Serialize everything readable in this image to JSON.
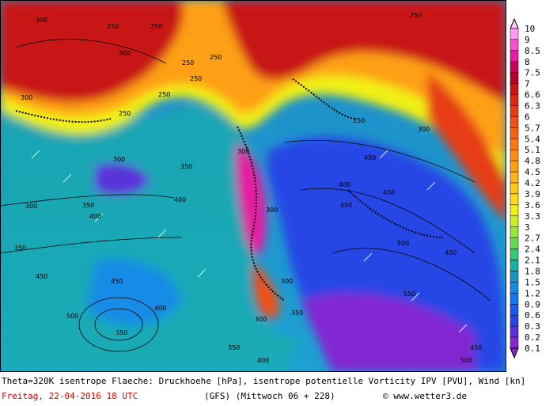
{
  "map": {
    "contour_labels": [
      "300",
      "300",
      "250",
      "250",
      "250",
      "250",
      "250",
      "250",
      "250",
      "250",
      "300",
      "250",
      "300",
      "300",
      "300",
      "350",
      "400",
      "350",
      "450",
      "300",
      "400",
      "450",
      "350",
      "450",
      "500",
      "400",
      "350",
      "450",
      "300",
      "500",
      "550",
      "300",
      "450",
      "400",
      "500",
      "450",
      "350",
      "300",
      "400",
      "450",
      "350"
    ],
    "legend_values": [
      "10",
      "9",
      "8.5",
      "8",
      "7.5",
      "7",
      "6.6",
      "6.3",
      "6",
      "5.7",
      "5.4",
      "5.1",
      "4.8",
      "4.5",
      "4.2",
      "3.9",
      "3.6",
      "3.3",
      "3",
      "2.7",
      "2.4",
      "2.1",
      "1.8",
      "1.5",
      "1.2",
      "0.9",
      "0.6",
      "0.3",
      "0.2",
      "0.1"
    ],
    "legend_colors": [
      "#ffd0ff",
      "#ff9cf0",
      "#ff4fd6",
      "#e61ea0",
      "#c8005a",
      "#b4002a",
      "#c81414",
      "#dc2814",
      "#e63c14",
      "#f05014",
      "#f56414",
      "#fa7814",
      "#ff8c14",
      "#ffa014",
      "#ffb414",
      "#ffc814",
      "#ffdc14",
      "#f0f014",
      "#c8f028",
      "#96e63c",
      "#64dc50",
      "#32c878",
      "#14b4a0",
      "#1496c8",
      "#148ce6",
      "#1478f0",
      "#1e5af0",
      "#2846e6",
      "#5a32dc",
      "#8228d2"
    ]
  },
  "caption": {
    "line1": "Theta=320K isentrope Flaeche: Druckhoehe [hPa], isentrope potentielle Vorticity IPV [PVU], Wind [kn]",
    "date": "Freitag, 22-04-2016  18 UTC",
    "model": "(GFS)  (Mittwoch 06 + 228)",
    "copyright": "© www.wetter3.de"
  }
}
